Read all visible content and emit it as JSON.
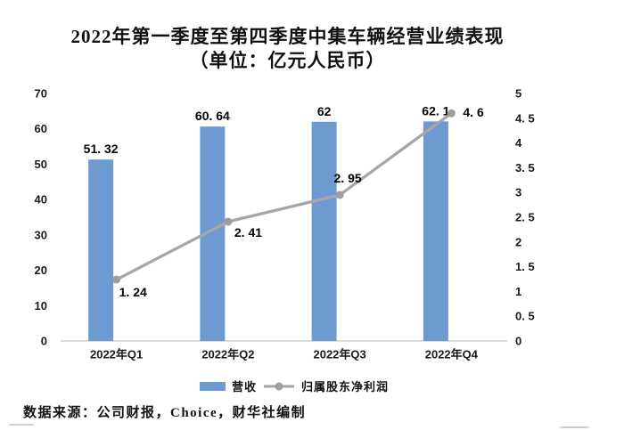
{
  "title": {
    "line1": "2022年第一季度至第四季度中集车辆经营业绩表现",
    "line2": "（单位：亿元人民币）"
  },
  "footer": {
    "source": "数据来源：公司财报，Choice，财华社编制"
  },
  "colors": {
    "bar": "#6D9BD1",
    "line": "#A6A6A6",
    "marker": "#9E9E9E",
    "axis": "#CFCFCF",
    "text": "#1A1A1A"
  },
  "chart_data": {
    "type": "bar+line combo",
    "title": "2022年第一季度至第四季度中集车辆经营业绩表现（单位：亿元人民币）",
    "categories": [
      "2022年Q1",
      "2022年Q2",
      "2022年Q3",
      "2022年Q4"
    ],
    "series": [
      {
        "name": "营收",
        "type": "bar",
        "axis": "left",
        "values": [
          51.32,
          60.64,
          62,
          62.1
        ],
        "labels": [
          "51. 32",
          "60. 64",
          "62",
          "62. 1"
        ]
      },
      {
        "name": "归属股东净利润",
        "type": "line",
        "axis": "right",
        "values": [
          1.24,
          2.41,
          2.95,
          4.6
        ],
        "labels": [
          "1. 24",
          "2. 41",
          "2. 95",
          "4. 6"
        ]
      }
    ],
    "left_axis": {
      "min": 0,
      "max": 70,
      "step": 10,
      "ticks": [
        "0",
        "10",
        "20",
        "30",
        "40",
        "50",
        "60",
        "70"
      ]
    },
    "right_axis": {
      "min": 0,
      "max": 5,
      "step": 0.5,
      "ticks": [
        "0",
        "0. 5",
        "1",
        "1. 5",
        "2",
        "2. 5",
        "3",
        "3. 5",
        "4",
        "4. 5",
        "5"
      ]
    },
    "grid": false,
    "legend_position": "bottom"
  }
}
